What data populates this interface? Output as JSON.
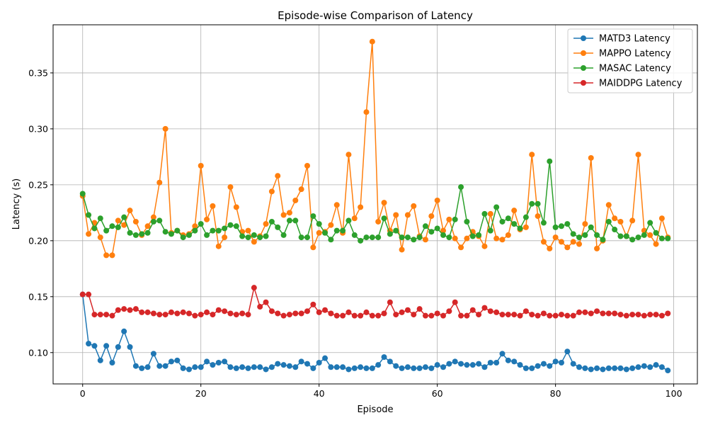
{
  "chart_data": {
    "type": "line",
    "title": "Episode-wise Comparison of Latency",
    "xlabel": "Episode",
    "ylabel": "Latency (s)",
    "xlim": [
      -5,
      104
    ],
    "ylim": [
      0.072,
      0.393
    ],
    "xticks": [
      0,
      20,
      40,
      60,
      80,
      100
    ],
    "yticks": [
      0.1,
      0.15,
      0.2,
      0.25,
      0.3,
      0.35
    ],
    "ytick_labels": [
      "0.10",
      "0.15",
      "0.20",
      "0.25",
      "0.30",
      "0.35"
    ],
    "grid": true,
    "legend_position": "top-right",
    "series": [
      {
        "name": "MATD3 Latency",
        "color": "#1f77b4",
        "values": [
          0.152,
          0.108,
          0.106,
          0.093,
          0.106,
          0.091,
          0.105,
          0.119,
          0.105,
          0.088,
          0.086,
          0.087,
          0.099,
          0.088,
          0.088,
          0.092,
          0.093,
          0.086,
          0.085,
          0.087,
          0.087,
          0.092,
          0.089,
          0.091,
          0.092,
          0.087,
          0.086,
          0.087,
          0.086,
          0.087,
          0.087,
          0.085,
          0.087,
          0.09,
          0.089,
          0.088,
          0.087,
          0.092,
          0.09,
          0.086,
          0.091,
          0.095,
          0.087,
          0.087,
          0.087,
          0.085,
          0.086,
          0.087,
          0.086,
          0.086,
          0.089,
          0.096,
          0.092,
          0.088,
          0.086,
          0.087,
          0.086,
          0.086,
          0.087,
          0.086,
          0.089,
          0.087,
          0.09,
          0.092,
          0.09,
          0.089,
          0.089,
          0.09,
          0.087,
          0.091,
          0.091,
          0.099,
          0.093,
          0.092,
          0.089,
          0.086,
          0.086,
          0.088,
          0.09,
          0.088,
          0.092,
          0.091,
          0.101,
          0.09,
          0.087,
          0.086,
          0.085,
          0.086,
          0.085,
          0.086,
          0.086,
          0.086,
          0.085,
          0.086,
          0.087,
          0.088,
          0.087,
          0.089,
          0.087,
          0.084
        ]
      },
      {
        "name": "MAPPO Latency",
        "color": "#ff7f0e",
        "values": [
          0.24,
          0.206,
          0.216,
          0.203,
          0.187,
          0.187,
          0.218,
          0.214,
          0.227,
          0.217,
          0.205,
          0.213,
          0.221,
          0.252,
          0.3,
          0.207,
          0.209,
          0.205,
          0.206,
          0.213,
          0.267,
          0.219,
          0.231,
          0.195,
          0.203,
          0.248,
          0.23,
          0.208,
          0.209,
          0.199,
          0.204,
          0.215,
          0.244,
          0.258,
          0.223,
          0.225,
          0.236,
          0.246,
          0.267,
          0.194,
          0.207,
          0.208,
          0.214,
          0.232,
          0.207,
          0.277,
          0.22,
          0.23,
          0.315,
          0.378,
          0.217,
          0.234,
          0.209,
          0.223,
          0.192,
          0.223,
          0.231,
          0.204,
          0.201,
          0.222,
          0.236,
          0.209,
          0.219,
          0.202,
          0.194,
          0.202,
          0.208,
          0.204,
          0.195,
          0.224,
          0.202,
          0.201,
          0.205,
          0.227,
          0.21,
          0.212,
          0.277,
          0.222,
          0.199,
          0.193,
          0.203,
          0.199,
          0.194,
          0.199,
          0.197,
          0.215,
          0.274,
          0.193,
          0.2,
          0.232,
          0.22,
          0.217,
          0.204,
          0.218,
          0.277,
          0.209,
          0.205,
          0.197,
          0.22,
          0.203
        ]
      },
      {
        "name": "MASAC Latency",
        "color": "#2ca02c",
        "values": [
          0.242,
          0.223,
          0.211,
          0.22,
          0.209,
          0.213,
          0.212,
          0.221,
          0.207,
          0.205,
          0.206,
          0.207,
          0.217,
          0.218,
          0.208,
          0.206,
          0.209,
          0.203,
          0.205,
          0.209,
          0.215,
          0.205,
          0.209,
          0.209,
          0.211,
          0.214,
          0.213,
          0.204,
          0.203,
          0.205,
          0.203,
          0.204,
          0.217,
          0.212,
          0.205,
          0.218,
          0.218,
          0.203,
          0.203,
          0.222,
          0.215,
          0.207,
          0.201,
          0.209,
          0.209,
          0.218,
          0.205,
          0.2,
          0.203,
          0.203,
          0.203,
          0.22,
          0.206,
          0.209,
          0.203,
          0.203,
          0.201,
          0.203,
          0.213,
          0.208,
          0.211,
          0.205,
          0.203,
          0.219,
          0.248,
          0.217,
          0.204,
          0.205,
          0.224,
          0.209,
          0.23,
          0.217,
          0.22,
          0.215,
          0.211,
          0.221,
          0.233,
          0.233,
          0.216,
          0.271,
          0.212,
          0.213,
          0.215,
          0.206,
          0.203,
          0.205,
          0.212,
          0.205,
          0.201,
          0.217,
          0.21,
          0.204,
          0.204,
          0.201,
          0.203,
          0.205,
          0.216,
          0.207,
          0.202,
          0.202
        ]
      },
      {
        "name": "MAIDDPG Latency",
        "color": "#d62728",
        "values": [
          0.152,
          0.152,
          0.134,
          0.134,
          0.134,
          0.133,
          0.138,
          0.139,
          0.138,
          0.139,
          0.136,
          0.136,
          0.135,
          0.134,
          0.134,
          0.136,
          0.135,
          0.136,
          0.135,
          0.133,
          0.134,
          0.136,
          0.134,
          0.138,
          0.137,
          0.135,
          0.134,
          0.135,
          0.134,
          0.158,
          0.141,
          0.145,
          0.137,
          0.135,
          0.133,
          0.134,
          0.135,
          0.135,
          0.137,
          0.143,
          0.136,
          0.138,
          0.135,
          0.133,
          0.133,
          0.136,
          0.133,
          0.133,
          0.136,
          0.133,
          0.133,
          0.135,
          0.145,
          0.134,
          0.136,
          0.138,
          0.134,
          0.139,
          0.133,
          0.133,
          0.135,
          0.133,
          0.137,
          0.145,
          0.133,
          0.133,
          0.138,
          0.134,
          0.14,
          0.137,
          0.136,
          0.134,
          0.134,
          0.134,
          0.133,
          0.137,
          0.134,
          0.133,
          0.135,
          0.133,
          0.133,
          0.134,
          0.133,
          0.133,
          0.136,
          0.136,
          0.135,
          0.137,
          0.135,
          0.135,
          0.135,
          0.134,
          0.133,
          0.134,
          0.134,
          0.133,
          0.134,
          0.134,
          0.133,
          0.135
        ]
      }
    ]
  }
}
